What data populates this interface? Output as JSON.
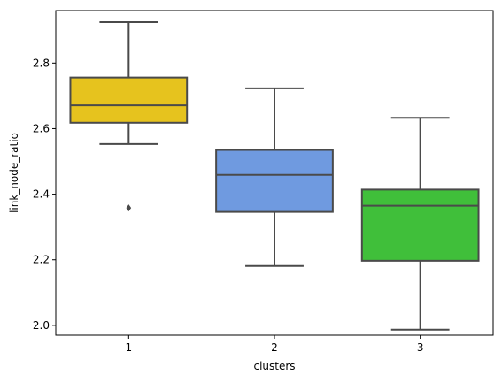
{
  "chart_data": {
    "type": "box",
    "xlabel": "clusters",
    "ylabel": "link_node_ratio",
    "categories": [
      "1",
      "2",
      "3"
    ],
    "ylim": [
      1.97,
      2.96
    ],
    "yticks": [
      2.0,
      2.2,
      2.4,
      2.6,
      2.8
    ],
    "ytick_labels": [
      "2.0",
      "2.2",
      "2.4",
      "2.6",
      "2.8"
    ],
    "grid": false,
    "legend": "none",
    "boxes": [
      {
        "category": "1",
        "whisker_low": 2.553,
        "q1": 2.618,
        "median": 2.671,
        "q3": 2.756,
        "whisker_high": 2.925,
        "outliers": [
          2.358
        ],
        "color": "#e6c31e"
      },
      {
        "category": "2",
        "whisker_low": 2.181,
        "q1": 2.346,
        "median": 2.459,
        "q3": 2.535,
        "whisker_high": 2.723,
        "outliers": [],
        "color": "#6f9ae0"
      },
      {
        "category": "3",
        "whisker_low": 1.987,
        "q1": 2.197,
        "median": 2.365,
        "q3": 2.414,
        "whisker_high": 2.633,
        "outliers": [],
        "color": "#40bf3a"
      }
    ],
    "line_color": "#4a4a4a"
  }
}
